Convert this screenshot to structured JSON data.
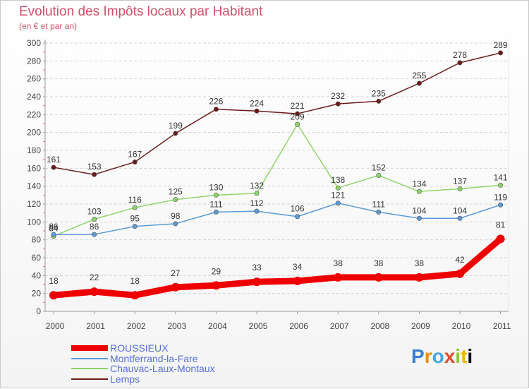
{
  "title": "Evolution des Impôts locaux par Habitant",
  "subtitle": "(en € et par an)",
  "logo": {
    "letters": [
      "P",
      "r",
      "o",
      "x",
      "i",
      "t",
      "i"
    ]
  },
  "chart_data": {
    "type": "line",
    "x": [
      "2000",
      "2001",
      "2002",
      "2003",
      "2004",
      "2005",
      "2006",
      "2007",
      "2008",
      "2009",
      "2010",
      "2011"
    ],
    "y_ticks": [
      "0",
      "20",
      "40",
      "60",
      "80",
      "100",
      "120",
      "140",
      "160",
      "180",
      "200",
      "220",
      "240",
      "260",
      "280",
      "300"
    ],
    "ylim": [
      0,
      300
    ],
    "grid": "horizontal dashed",
    "legend_position": "bottom-left",
    "series": [
      {
        "name": "ROUSSIEUX",
        "color": "#ee0000",
        "values": [
          18,
          22,
          18,
          27,
          29,
          33,
          34,
          38,
          38,
          38,
          42,
          81
        ]
      },
      {
        "name": "Montferrand-la-Fare",
        "color": "#5b9bd5",
        "values": [
          86,
          86,
          95,
          98,
          111,
          112,
          106,
          121,
          111,
          104,
          104,
          119
        ]
      },
      {
        "name": "Chauvac-Laux-Montaux",
        "color": "#8ed66a",
        "values": [
          84,
          103,
          116,
          125,
          130,
          132,
          209,
          138,
          152,
          134,
          137,
          141
        ]
      },
      {
        "name": "Lemps",
        "color": "#6b1a1a",
        "values": [
          161,
          153,
          167,
          199,
          226,
          224,
          221,
          232,
          235,
          255,
          278,
          289
        ]
      }
    ]
  }
}
